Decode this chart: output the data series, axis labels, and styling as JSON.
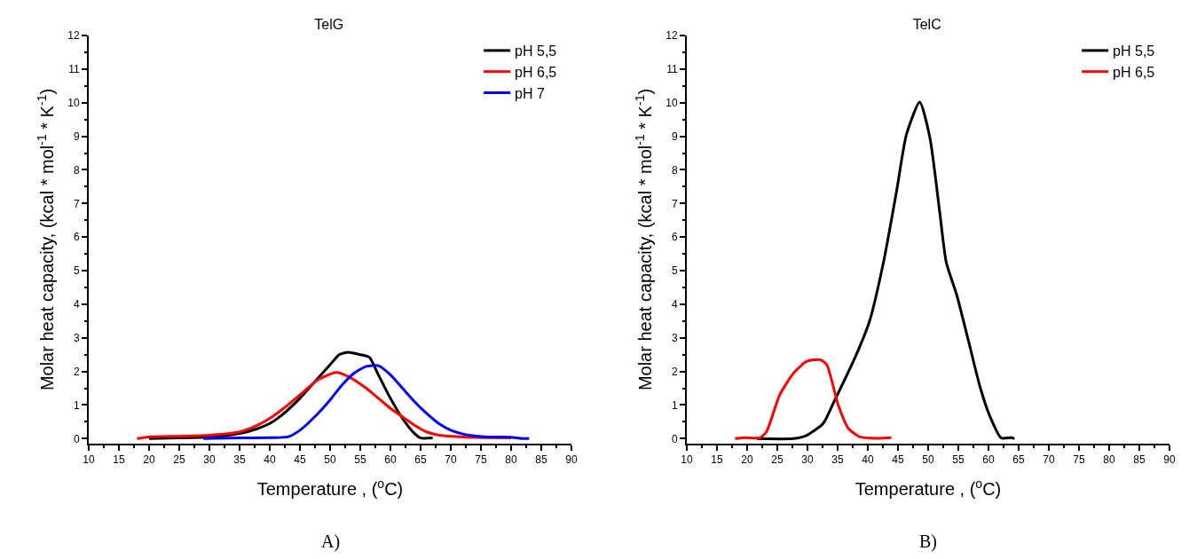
{
  "chart_data": [
    {
      "type": "line",
      "title": "TelG",
      "xlabel": "Temperature , ($^{o}$C)",
      "ylabel": "Molar heat capacity, (kcal * mol$^{-1}$ * K$^{-1}$)",
      "xlim": [
        10,
        90
      ],
      "xticks": [
        10,
        15,
        20,
        25,
        30,
        35,
        40,
        45,
        50,
        55,
        60,
        65,
        70,
        75,
        80,
        85,
        90
      ],
      "ylim": [
        -0.15,
        12
      ],
      "yticks": [
        0,
        1,
        2,
        3,
        4,
        5,
        6,
        7,
        8,
        9,
        10,
        11,
        12
      ],
      "grid": false,
      "legend": "top right",
      "marker": "none",
      "line_style": "solid",
      "annotations": [
        "A)"
      ],
      "series": [
        {
          "name": "pH 5,5",
          "color": "#000000",
          "x": [
            20,
            25,
            30,
            35,
            38,
            40,
            42,
            45,
            48,
            50,
            51.5,
            53,
            55,
            56.5,
            58,
            60,
            62,
            64,
            65,
            67
          ],
          "values": [
            0,
            0.02,
            0.05,
            0.15,
            0.3,
            0.45,
            0.7,
            1.2,
            1.8,
            2.2,
            2.5,
            2.57,
            2.5,
            2.42,
            1.9,
            1.2,
            0.6,
            0.15,
            0.02,
            0.02
          ]
        },
        {
          "name": "pH 6,5",
          "color": "#ff0000",
          "x": [
            18,
            20,
            25,
            30,
            35,
            38,
            40,
            43,
            45,
            48,
            51,
            53,
            56,
            58,
            60,
            62,
            64,
            66,
            68,
            72,
            76,
            80
          ],
          "values": [
            0,
            0.05,
            0.07,
            0.1,
            0.2,
            0.4,
            0.6,
            1.0,
            1.3,
            1.75,
            1.97,
            1.85,
            1.5,
            1.2,
            0.9,
            0.65,
            0.4,
            0.2,
            0.1,
            0.05,
            0.03,
            0.02
          ]
        },
        {
          "name": "pH 7",
          "color": "#0000ff",
          "x": [
            29,
            35,
            40,
            43,
            45,
            48,
            50,
            52,
            54,
            56,
            58,
            60,
            62,
            64,
            66,
            68,
            70,
            73,
            76,
            79,
            80,
            82,
            83
          ],
          "values": [
            0,
            0.02,
            0.03,
            0.05,
            0.25,
            0.75,
            1.15,
            1.6,
            1.95,
            2.15,
            2.17,
            1.9,
            1.5,
            1.1,
            0.75,
            0.45,
            0.25,
            0.1,
            0.05,
            0.05,
            0.04,
            0,
            0
          ]
        }
      ]
    },
    {
      "type": "line",
      "title": "TelC",
      "xlabel": "Temperature , ($^{o}$C)",
      "ylabel": "Molar heat capacity, (kcal * mol$^{-1}$ * K$^{-1}$)",
      "xlim": [
        10,
        90
      ],
      "xticks": [
        10,
        15,
        20,
        25,
        30,
        35,
        40,
        45,
        50,
        55,
        60,
        65,
        70,
        75,
        80,
        85,
        90
      ],
      "ylim": [
        -0.15,
        12
      ],
      "yticks": [
        0,
        1,
        2,
        3,
        4,
        5,
        6,
        7,
        8,
        9,
        10,
        11,
        12
      ],
      "grid": false,
      "legend": "top right",
      "marker": "none",
      "line_style": "solid",
      "annotations": [
        "B)"
      ],
      "series": [
        {
          "name": "pH 5,5",
          "color": "#000000",
          "x": [
            21.6,
            27.7,
            29.9,
            32.6,
            34.3,
            38.1,
            40.3,
            42.6,
            44.8,
            46.4,
            48.6,
            50.3,
            51.9,
            53,
            54.7,
            56.6,
            58.6,
            60.2,
            62.1,
            63.8,
            64.3
          ],
          "values": [
            0,
            0,
            0.1,
            0.45,
            1.06,
            2.5,
            3.5,
            5.25,
            7.4,
            9.05,
            10.02,
            8.95,
            6.77,
            5.25,
            4.3,
            2.97,
            1.54,
            0.68,
            0.02,
            0.03,
            0
          ]
        },
        {
          "name": "pH 6,5",
          "color": "#ff0000",
          "x": [
            18,
            19.7,
            22.1,
            23.2,
            25.4,
            27.7,
            29.9,
            32.1,
            33.2,
            35.1,
            36.8,
            38.7,
            41.4,
            43.9
          ],
          "values": [
            0,
            0.03,
            0.02,
            0.2,
            1.3,
            1.95,
            2.3,
            2.35,
            2.2,
            1.0,
            0.3,
            0.05,
            0.01,
            0.03
          ]
        }
      ]
    }
  ]
}
